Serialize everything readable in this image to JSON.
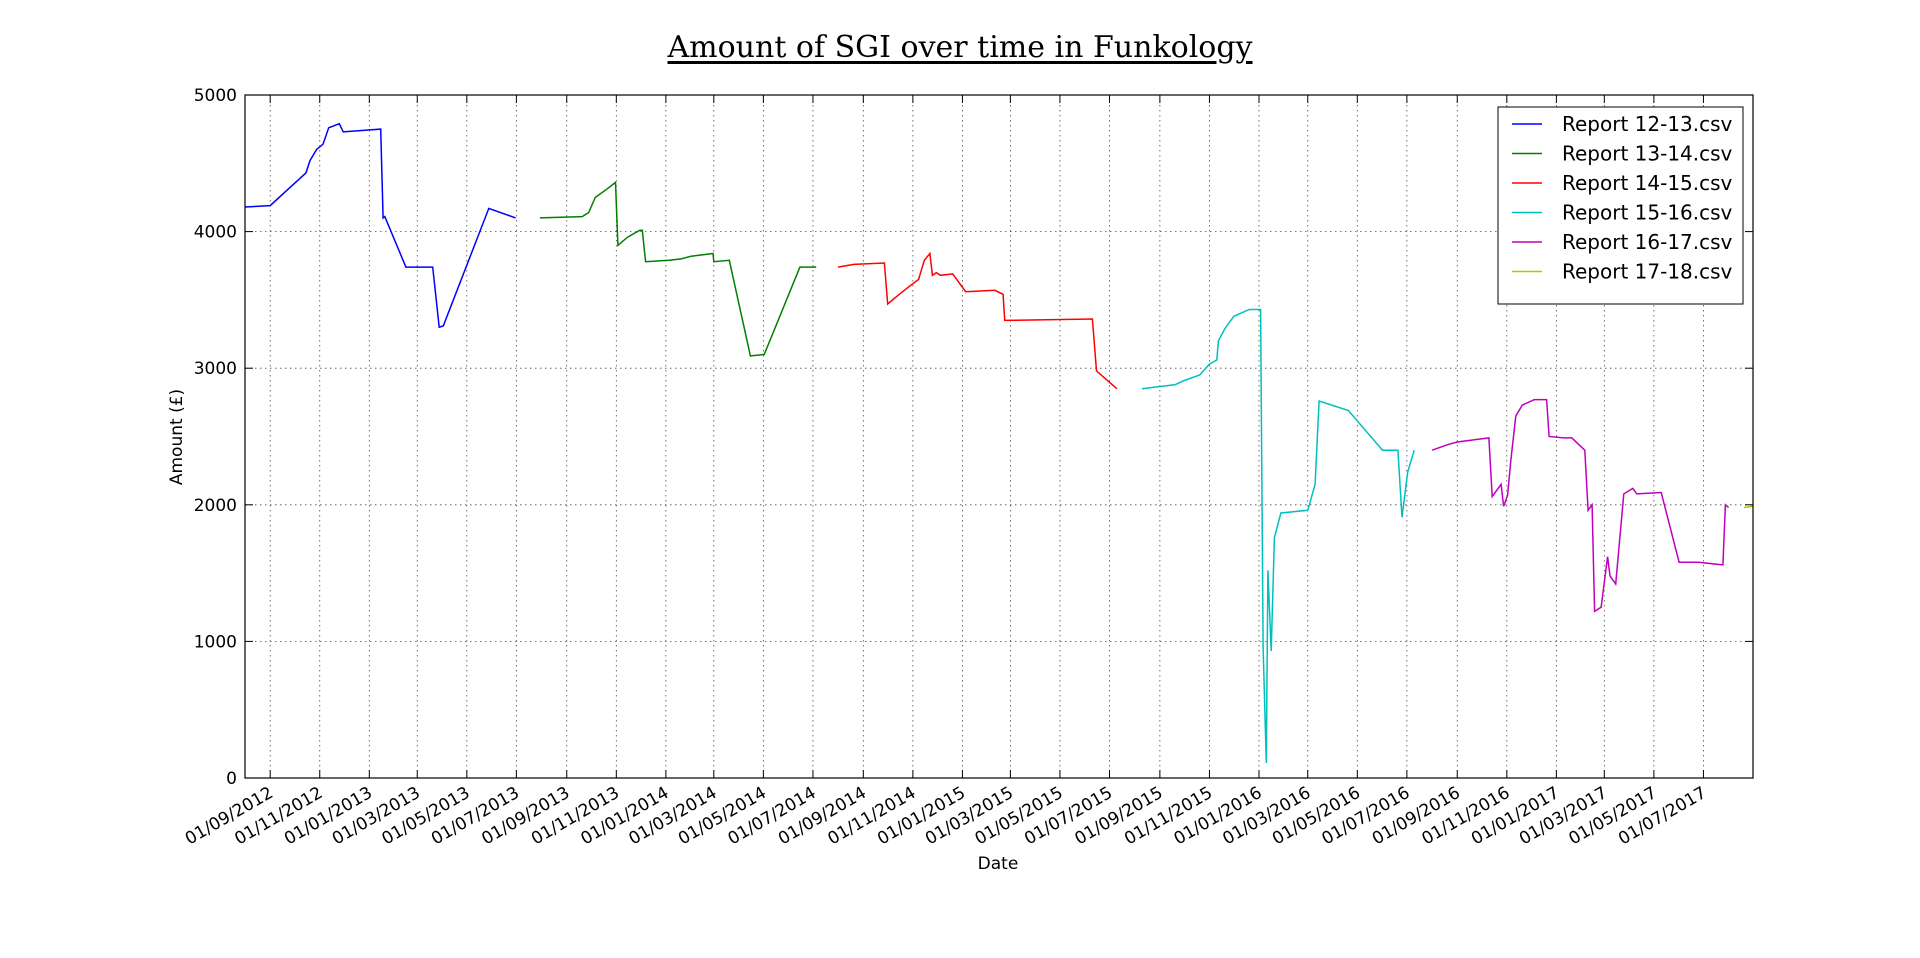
{
  "chart_data": {
    "type": "line",
    "title": "Amount of SGI over time in Funkology",
    "xlabel": "Date",
    "ylabel": "Amount (£)",
    "ylim": [
      0,
      5000
    ],
    "xlim": [
      "2012-08-01",
      "2017-08-31"
    ],
    "grid": true,
    "legend_position": "top-right",
    "x_tick_labels": [
      "01/09/2012",
      "01/11/2012",
      "01/01/2013",
      "01/03/2013",
      "01/05/2013",
      "01/07/2013",
      "01/09/2013",
      "01/11/2013",
      "01/01/2014",
      "01/03/2014",
      "01/05/2014",
      "01/07/2014",
      "01/09/2014",
      "01/11/2014",
      "01/01/2015",
      "01/03/2015",
      "01/05/2015",
      "01/07/2015",
      "01/09/2015",
      "01/11/2015",
      "01/01/2016",
      "01/03/2016",
      "01/05/2016",
      "01/07/2016",
      "01/09/2016",
      "01/11/2016",
      "01/01/2017",
      "01/03/2017",
      "01/05/2017",
      "01/07/2017"
    ],
    "y_tick_labels": [
      "0",
      "1000",
      "2000",
      "3000",
      "4000",
      "5000"
    ],
    "series": [
      {
        "name": "Report 12-13.csv",
        "color": "#0000ff",
        "points": [
          [
            "2012-08-01",
            4180
          ],
          [
            "2012-09-01",
            4190
          ],
          [
            "2012-10-15",
            4430
          ],
          [
            "2012-10-20",
            4520
          ],
          [
            "2012-10-28",
            4600
          ],
          [
            "2012-11-05",
            4640
          ],
          [
            "2012-11-12",
            4760
          ],
          [
            "2012-11-25",
            4790
          ],
          [
            "2012-11-30",
            4730
          ],
          [
            "2013-01-15",
            4750
          ],
          [
            "2013-01-18",
            4100
          ],
          [
            "2013-01-20",
            4110
          ],
          [
            "2013-02-15",
            3740
          ],
          [
            "2013-03-20",
            3740
          ],
          [
            "2013-03-28",
            3300
          ],
          [
            "2013-04-02",
            3310
          ],
          [
            "2013-05-28",
            4170
          ],
          [
            "2013-06-30",
            4100
          ]
        ]
      },
      {
        "name": "Report 13-14.csv",
        "color": "#008000",
        "points": [
          [
            "2013-07-30",
            4100
          ],
          [
            "2013-09-20",
            4110
          ],
          [
            "2013-09-28",
            4140
          ],
          [
            "2013-10-06",
            4250
          ],
          [
            "2013-10-20",
            4310
          ],
          [
            "2013-10-31",
            4360
          ],
          [
            "2013-11-03",
            3900
          ],
          [
            "2013-11-15",
            3960
          ],
          [
            "2013-11-30",
            4010
          ],
          [
            "2013-12-03",
            4010
          ],
          [
            "2013-12-07",
            3780
          ],
          [
            "2014-01-05",
            3790
          ],
          [
            "2014-01-20",
            3800
          ],
          [
            "2014-02-01",
            3820
          ],
          [
            "2014-02-28",
            3840
          ],
          [
            "2014-03-01",
            3780
          ],
          [
            "2014-03-20",
            3790
          ],
          [
            "2014-04-15",
            3090
          ],
          [
            "2014-05-02",
            3100
          ],
          [
            "2014-06-15",
            3740
          ],
          [
            "2014-07-05",
            3740
          ]
        ]
      },
      {
        "name": "Report 14-15.csv",
        "color": "#ff0000",
        "points": [
          [
            "2014-08-01",
            3740
          ],
          [
            "2014-08-20",
            3760
          ],
          [
            "2014-09-27",
            3770
          ],
          [
            "2014-10-01",
            3470
          ],
          [
            "2014-10-15",
            3540
          ],
          [
            "2014-10-28",
            3600
          ],
          [
            "2014-11-08",
            3650
          ],
          [
            "2014-11-15",
            3790
          ],
          [
            "2014-11-22",
            3840
          ],
          [
            "2014-11-25",
            3680
          ],
          [
            "2014-11-30",
            3700
          ],
          [
            "2014-12-05",
            3680
          ],
          [
            "2014-12-20",
            3690
          ],
          [
            "2015-01-05",
            3560
          ],
          [
            "2015-02-10",
            3570
          ],
          [
            "2015-02-20",
            3540
          ],
          [
            "2015-02-22",
            3350
          ],
          [
            "2015-06-10",
            3360
          ],
          [
            "2015-06-15",
            2980
          ],
          [
            "2015-07-10",
            2850
          ]
        ]
      },
      {
        "name": "Report 15-16.csv",
        "color": "#00bfbf",
        "points": [
          [
            "2015-08-10",
            2850
          ],
          [
            "2015-09-20",
            2880
          ],
          [
            "2015-10-01",
            2910
          ],
          [
            "2015-10-20",
            2950
          ],
          [
            "2015-11-01",
            3030
          ],
          [
            "2015-11-10",
            3060
          ],
          [
            "2015-11-12",
            3200
          ],
          [
            "2015-11-20",
            3290
          ],
          [
            "2015-12-01",
            3380
          ],
          [
            "2015-12-20",
            3430
          ],
          [
            "2016-01-03",
            3430
          ],
          [
            "2016-01-06",
            960
          ],
          [
            "2016-01-10",
            110
          ],
          [
            "2016-01-12",
            1520
          ],
          [
            "2016-01-16",
            930
          ],
          [
            "2016-01-20",
            1760
          ],
          [
            "2016-01-28",
            1940
          ],
          [
            "2016-03-01",
            1960
          ],
          [
            "2016-03-10",
            2150
          ],
          [
            "2016-03-15",
            2760
          ],
          [
            "2016-04-20",
            2690
          ],
          [
            "2016-06-01",
            2400
          ],
          [
            "2016-06-20",
            2400
          ],
          [
            "2016-06-25",
            1910
          ],
          [
            "2016-07-02",
            2240
          ],
          [
            "2016-07-10",
            2400
          ]
        ]
      },
      {
        "name": "Report 16-17.csv",
        "color": "#bf00bf",
        "points": [
          [
            "2016-08-01",
            2400
          ],
          [
            "2016-08-20",
            2440
          ],
          [
            "2016-09-01",
            2460
          ],
          [
            "2016-10-10",
            2490
          ],
          [
            "2016-10-14",
            2060
          ],
          [
            "2016-10-25",
            2150
          ],
          [
            "2016-10-28",
            1990
          ],
          [
            "2016-11-02",
            2070
          ],
          [
            "2016-11-06",
            2330
          ],
          [
            "2016-11-12",
            2650
          ],
          [
            "2016-11-20",
            2730
          ],
          [
            "2016-12-05",
            2770
          ],
          [
            "2016-12-20",
            2770
          ],
          [
            "2016-12-23",
            2500
          ],
          [
            "2017-01-10",
            2490
          ],
          [
            "2017-01-20",
            2490
          ],
          [
            "2017-02-05",
            2400
          ],
          [
            "2017-02-09",
            1960
          ],
          [
            "2017-02-14",
            2000
          ],
          [
            "2017-02-17",
            1220
          ],
          [
            "2017-02-25",
            1250
          ],
          [
            "2017-03-05",
            1620
          ],
          [
            "2017-03-08",
            1480
          ],
          [
            "2017-03-15",
            1420
          ],
          [
            "2017-03-25",
            2080
          ],
          [
            "2017-04-05",
            2120
          ],
          [
            "2017-04-10",
            2080
          ],
          [
            "2017-05-10",
            2090
          ],
          [
            "2017-06-01",
            1580
          ],
          [
            "2017-06-25",
            1580
          ],
          [
            "2017-07-25",
            1560
          ],
          [
            "2017-07-28",
            2000
          ],
          [
            "2017-08-01",
            1980
          ]
        ]
      },
      {
        "name": "Report 17-18.csv",
        "color": "#bfbf00",
        "points": [
          [
            "2017-08-20",
            1980
          ],
          [
            "2017-08-31",
            1990
          ]
        ]
      }
    ]
  }
}
